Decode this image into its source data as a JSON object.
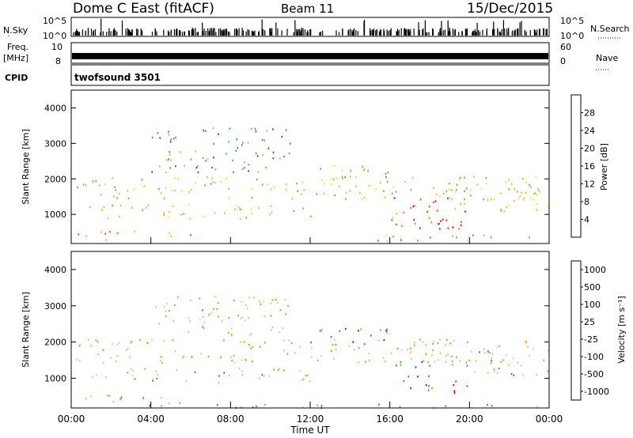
{
  "header": {
    "title": "Dome C East (fitACF)",
    "beam": "Beam 11",
    "date": "15/Dec/2015"
  },
  "strips": {
    "nsky_label": "N.Sky",
    "nsearch_label": "N.Search",
    "nsky_ticks": [
      "10^5",
      "10^0"
    ],
    "freq_label": "Freq.",
    "freq_unit": "[MHz]",
    "freq_ticks": [
      "10",
      "8"
    ],
    "nave_label": "Nave",
    "nave_ticks": [
      "60",
      "0"
    ],
    "cpid_label": "CPID",
    "cpid_value": "twofsound 3501"
  },
  "x_axis": {
    "label": "Time UT",
    "ticks": [
      "00:00",
      "04:00",
      "08:00",
      "12:00",
      "16:00",
      "20:00",
      "00:00"
    ]
  },
  "chart_data": [
    {
      "type": "heatmap",
      "name": "power",
      "xlabel": "Time UT",
      "ylabel": "Slant Range [km]",
      "xlim_hours": [
        0,
        24
      ],
      "ylim_km": [
        180,
        4500
      ],
      "yticks": [
        "1000",
        "2000",
        "3000",
        "4000"
      ],
      "colorbar": {
        "label": "Power [dB]",
        "ticks": [
          "4",
          "8",
          "12",
          "16",
          "20",
          "24",
          "28"
        ],
        "colors": [
          "#0022ff",
          "#1f55aa",
          "#3f8f6e",
          "#6fa85c",
          "#9dd14a",
          "#e6e63a",
          "#ffb030",
          "#ff7a1a",
          "#f04010",
          "#e01010"
        ]
      },
      "regions": [
        {
          "x": [
            0.2,
            24
          ],
          "y": [
            1450,
            2100
          ],
          "level": 0.5
        },
        {
          "x": [
            0.2,
            12
          ],
          "y": [
            900,
            1300
          ],
          "level": 0.6
        },
        {
          "x": [
            0.2,
            6
          ],
          "y": [
            300,
            550
          ],
          "level": 0.75
        },
        {
          "x": [
            4,
            11
          ],
          "y": [
            2200,
            3500
          ],
          "level": 0.3
        },
        {
          "x": [
            12,
            16
          ],
          "y": [
            1900,
            2400
          ],
          "level": 0.45
        },
        {
          "x": [
            16,
            20
          ],
          "y": [
            600,
            1500
          ],
          "level": 0.85
        },
        {
          "x": [
            17.5,
            19.5
          ],
          "y": [
            600,
            900
          ],
          "level": 0.9
        },
        {
          "x": [
            19,
            24
          ],
          "y": [
            1100,
            1800
          ],
          "level": 0.55
        },
        {
          "x": [
            15,
            24
          ],
          "y": [
            250,
            450
          ],
          "level": 0.4
        }
      ]
    },
    {
      "type": "heatmap",
      "name": "velocity",
      "xlabel": "Time UT",
      "ylabel": "Slant Range [km]",
      "xlim_hours": [
        0,
        24
      ],
      "ylim_km": [
        180,
        4500
      ],
      "yticks": [
        "1000",
        "2000",
        "3000",
        "4000"
      ],
      "colorbar": {
        "label": "Velocity [m s⁻¹]",
        "ticks": [
          "1000",
          "500",
          "100",
          "25",
          "-25",
          "-100",
          "-500",
          "-1000"
        ],
        "colors": [
          "#1030d0",
          "#3a6ab0",
          "#2e8b57",
          "#66cc33",
          "#c8c8c8",
          "#ffb060",
          "#ff8000",
          "#ff4000",
          "#ee0000"
        ]
      },
      "regions": [
        {
          "x": [
            0.2,
            24
          ],
          "y": [
            1450,
            2100
          ],
          "level": 0.55
        },
        {
          "x": [
            0.2,
            12
          ],
          "y": [
            900,
            1300
          ],
          "level": 0.45
        },
        {
          "x": [
            0.2,
            6
          ],
          "y": [
            300,
            550
          ],
          "level": 0.7
        },
        {
          "x": [
            4,
            11
          ],
          "y": [
            2200,
            3300
          ],
          "level": 0.5
        },
        {
          "x": [
            12,
            16
          ],
          "y": [
            1900,
            2400
          ],
          "level": 0.25
        },
        {
          "x": [
            16,
            18
          ],
          "y": [
            600,
            1500
          ],
          "level": 0.2
        },
        {
          "x": [
            17.8,
            20
          ],
          "y": [
            600,
            950
          ],
          "level": 0.85
        },
        {
          "x": [
            19,
            24
          ],
          "y": [
            1100,
            1800
          ],
          "level": 0.45
        },
        {
          "x": [
            0.2,
            24
          ],
          "y": [
            200,
            300
          ],
          "level": 0.3
        }
      ]
    }
  ]
}
